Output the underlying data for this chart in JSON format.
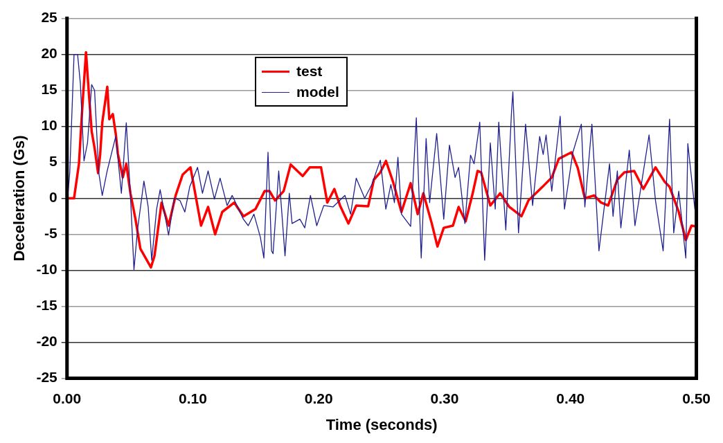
{
  "chart_data": {
    "type": "line",
    "xlabel": "Time (seconds)",
    "ylabel": "Deceleration (Gs)",
    "xlim": [
      0,
      0.5
    ],
    "xticks": [
      {
        "value": 0,
        "label": "0.00"
      },
      {
        "value": 0.1,
        "label": "0.10"
      },
      {
        "value": 0.2,
        "label": "0.20"
      },
      {
        "value": 0.3,
        "label": "0.30"
      },
      {
        "value": 0.4,
        "label": "0.40"
      },
      {
        "value": 0.5,
        "label": "0.50"
      }
    ],
    "ylim": [
      -25,
      25
    ],
    "yticks": [
      -25,
      -20,
      -15,
      -10,
      -5,
      0,
      5,
      10,
      15,
      20,
      25
    ],
    "grid": "y",
    "legend": "top",
    "marker": "none",
    "series": [
      {
        "name": "test",
        "color": "#ff0000",
        "x": [
          0,
          0.0056,
          0.0095,
          0.0123,
          0.0151,
          0.0168,
          0.0196,
          0.0219,
          0.0247,
          0.0263,
          0.028,
          0.032,
          0.0336,
          0.0364,
          0.0387,
          0.0404,
          0.0443,
          0.0471,
          0.0504,
          0.0544,
          0.0583,
          0.0667,
          0.0695,
          0.0751,
          0.0807,
          0.0863,
          0.0919,
          0.0981,
          0.1009,
          0.1065,
          0.1121,
          0.1177,
          0.1233,
          0.1329,
          0.1402,
          0.1497,
          0.157,
          0.1609,
          0.1653,
          0.1721,
          0.1777,
          0.1872,
          0.1928,
          0.2018,
          0.2068,
          0.2124,
          0.2169,
          0.2236,
          0.2298,
          0.2393,
          0.2438,
          0.2489,
          0.2534,
          0.259,
          0.2657,
          0.273,
          0.2786,
          0.2831,
          0.2898,
          0.2943,
          0.2993,
          0.3066,
          0.3111,
          0.3167,
          0.3223,
          0.3262,
          0.329,
          0.3363,
          0.3441,
          0.3514,
          0.361,
          0.3666,
          0.3778,
          0.3851,
          0.3907,
          0.4008,
          0.4058,
          0.4114,
          0.4187,
          0.4243,
          0.4299,
          0.4372,
          0.4428,
          0.4506,
          0.4579,
          0.4675,
          0.4748,
          0.4787,
          0.486,
          0.4916,
          0.4961,
          0.4994
        ],
        "values": [
          0,
          0,
          4.8,
          13,
          20.3,
          16,
          9.3,
          7,
          3.5,
          6,
          10.5,
          15.5,
          11,
          11.7,
          9,
          6.2,
          2.9,
          4.8,
          0.7,
          -2.9,
          -7,
          -9.6,
          -8,
          -0.6,
          -3.8,
          0.4,
          3.3,
          4.3,
          1.6,
          -3.8,
          -1.2,
          -5,
          -1.9,
          -0.6,
          -2.5,
          -1.5,
          1,
          1,
          -0.3,
          1,
          4.7,
          3.1,
          4.3,
          4.3,
          -0.6,
          1.3,
          -1,
          -3.5,
          -1,
          -1.1,
          2.6,
          3.6,
          5.2,
          2.3,
          -1.9,
          2.1,
          -2.2,
          0.7,
          -3.5,
          -6.7,
          -4.1,
          -3.8,
          -1.2,
          -3.2,
          0.7,
          3.8,
          3.6,
          -1,
          0.7,
          -1.2,
          -2.5,
          -0.3,
          1.6,
          2.9,
          5.5,
          6.4,
          4.2,
          0,
          0.4,
          -0.6,
          -1,
          2.6,
          3.6,
          3.8,
          1.3,
          4.3,
          2.3,
          1.6,
          -1.9,
          -5.8,
          -3.8,
          -3.9
        ]
      },
      {
        "name": "model",
        "color": "#1f1f8f",
        "x": [
          0,
          0.0022,
          0.0056,
          0.0084,
          0.0106,
          0.0135,
          0.0163,
          0.0196,
          0.0219,
          0.0252,
          0.028,
          0.0319,
          0.0387,
          0.0432,
          0.0471,
          0.0504,
          0.0532,
          0.056,
          0.0611,
          0.0645,
          0.0673,
          0.0712,
          0.074,
          0.0807,
          0.0852,
          0.0897,
          0.0936,
          0.0975,
          0.1037,
          0.1076,
          0.1121,
          0.1171,
          0.1216,
          0.1272,
          0.1312,
          0.1401,
          0.144,
          0.1485,
          0.1536,
          0.1564,
          0.1597,
          0.1625,
          0.1637,
          0.1682,
          0.1732,
          0.1766,
          0.1788,
          0.185,
          0.1889,
          0.1934,
          0.1984,
          0.204,
          0.2113,
          0.2208,
          0.2253,
          0.2298,
          0.2365,
          0.2421,
          0.2489,
          0.2533,
          0.2573,
          0.2601,
          0.2629,
          0.2657,
          0.273,
          0.2775,
          0.2814,
          0.2853,
          0.2881,
          0.2937,
          0.2993,
          0.3038,
          0.3083,
          0.3111,
          0.3161,
          0.3206,
          0.3234,
          0.3279,
          0.3318,
          0.3363,
          0.3402,
          0.343,
          0.3486,
          0.3531,
          0.3542,
          0.3587,
          0.3643,
          0.3699,
          0.3755,
          0.3783,
          0.3806,
          0.3851,
          0.3918,
          0.3952,
          0.4019,
          0.4086,
          0.4114,
          0.417,
          0.4226,
          0.431,
          0.4338,
          0.4372,
          0.44,
          0.4467,
          0.4512,
          0.4624,
          0.4675,
          0.4736,
          0.4787,
          0.482,
          0.486,
          0.4916,
          0.4932,
          0.4988,
          0.5
        ],
        "values": [
          -1,
          3.6,
          20,
          20,
          16,
          5.2,
          7.7,
          15.8,
          15,
          3.6,
          0.4,
          3.8,
          8.6,
          0.7,
          10.5,
          0.4,
          -9.9,
          -4.4,
          2.4,
          -1.2,
          -8.6,
          -1.5,
          1.2,
          -5.1,
          0,
          -0.3,
          -1.9,
          1.6,
          4.3,
          0.7,
          3.8,
          -0.1,
          2.8,
          -1,
          0.4,
          -2.9,
          -3.8,
          -2.2,
          -5.4,
          -8.3,
          6.4,
          -7.3,
          -7.7,
          3.8,
          -8,
          0.7,
          -3.5,
          -2.9,
          -4.1,
          0.4,
          -3.8,
          -1,
          -1.2,
          0.4,
          -2.2,
          2.8,
          0,
          1.9,
          5.3,
          -1.5,
          1.9,
          -0.6,
          5.7,
          -2.2,
          -3.9,
          11.2,
          -8.3,
          8.3,
          -0.6,
          9,
          -2.9,
          7.4,
          2.9,
          4.3,
          -3.5,
          6,
          4.8,
          10.6,
          -8.6,
          7.7,
          -1.5,
          10.6,
          -4.4,
          11.9,
          14.8,
          -4.8,
          10.3,
          -1,
          8.6,
          6.1,
          8.8,
          1,
          11.4,
          -1.5,
          6.4,
          10.3,
          -1.2,
          10.3,
          -7.3,
          4.8,
          -2.5,
          3.8,
          -4.1,
          6.7,
          -3.8,
          8.8,
          -0.3,
          -7.3,
          11,
          -4.8,
          1,
          -8.3,
          7.6,
          -1.5,
          -1.5
        ]
      }
    ]
  }
}
